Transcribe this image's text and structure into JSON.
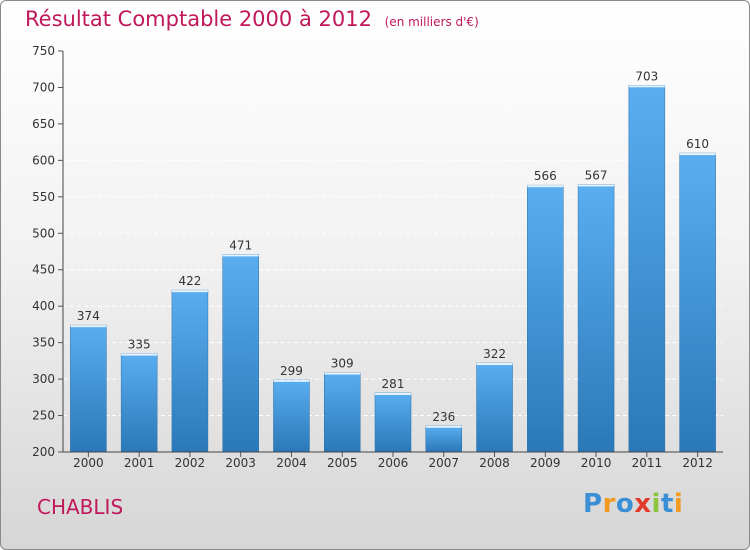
{
  "chart_data": {
    "type": "bar",
    "title": "Résultat Comptable 2000 à 2012",
    "unit_label": "(en milliers d'€)",
    "xlabel": "",
    "ylabel": "",
    "categories": [
      "2000",
      "2001",
      "2002",
      "2003",
      "2004",
      "2005",
      "2006",
      "2007",
      "2008",
      "2009",
      "2010",
      "2011",
      "2012"
    ],
    "values": [
      374,
      335,
      422,
      471,
      299,
      309,
      281,
      236,
      322,
      566,
      567,
      703,
      610
    ],
    "ylim": [
      200,
      750
    ],
    "yticks": [
      200,
      250,
      300,
      350,
      400,
      450,
      500,
      550,
      600,
      650,
      700,
      750
    ],
    "grid": true,
    "bar_color": "#3d95d8"
  },
  "footer": {
    "commune": "CHABLIS",
    "logo_text": "Proxiti"
  }
}
